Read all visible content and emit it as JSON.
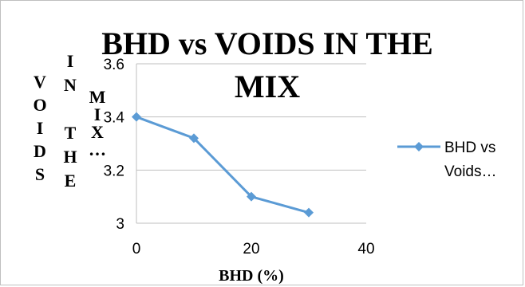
{
  "chart_data": {
    "type": "line",
    "title_lines": [
      "BHD vs VOIDS IN THE",
      "MIX"
    ],
    "xlabel": "BHD (%)",
    "ylabel_col1": [
      "V",
      "O",
      "I",
      "D",
      "S"
    ],
    "ylabel_col2": [
      "I",
      "N",
      "",
      "T",
      "H",
      "E"
    ],
    "ylabel_col3": [
      "M",
      "I",
      "X",
      "…"
    ],
    "x": [
      0,
      10,
      20,
      30
    ],
    "series": [
      {
        "name": "BHD vs Voids…",
        "values": [
          3.4,
          3.32,
          3.1,
          3.04
        ],
        "color": "#5b9bd5"
      }
    ],
    "legend_lines": [
      "BHD vs",
      "Voids…"
    ],
    "xlim": [
      0,
      40
    ],
    "ylim": [
      3,
      3.6
    ],
    "x_ticks": [
      0,
      20,
      40
    ],
    "y_ticks": [
      3,
      3.2,
      3.4,
      3.6
    ],
    "x_tick_labels": [
      "0",
      "20",
      "40"
    ],
    "y_tick_labels": [
      "3",
      "3.2",
      "3.4",
      "3.6"
    ],
    "grid": "horizontal",
    "legend_position": "right"
  }
}
